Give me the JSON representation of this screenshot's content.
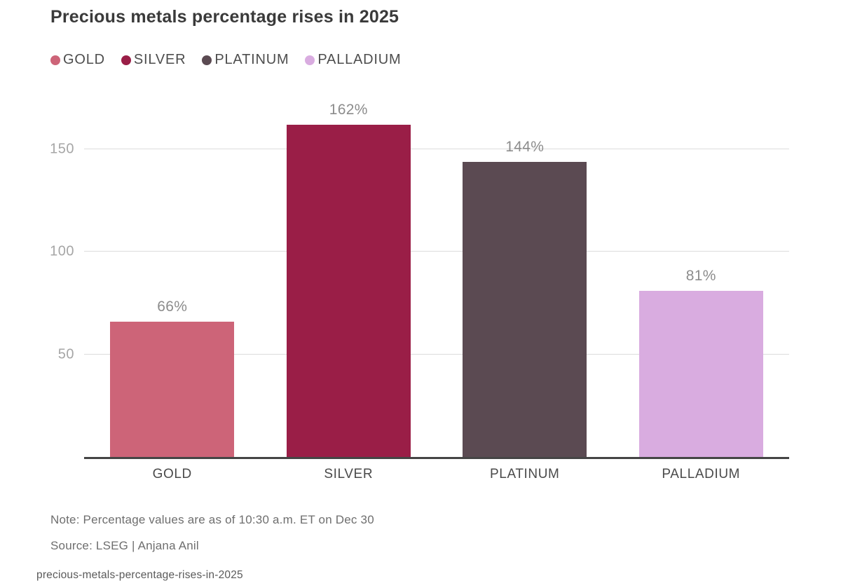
{
  "title": "Precious metals percentage rises in 2025",
  "legend": {
    "items": [
      {
        "label": "GOLD",
        "color": "#cd6478"
      },
      {
        "label": "SILVER",
        "color": "#9a1e47"
      },
      {
        "label": "PLATINUM",
        "color": "#5b4a52"
      },
      {
        "label": "PALLADIUM",
        "color": "#d9ace0"
      }
    ]
  },
  "chart_data": {
    "type": "bar",
    "title": "Precious metals percentage rises in 2025",
    "categories": [
      "GOLD",
      "SILVER",
      "PLATINUM",
      "PALLADIUM"
    ],
    "values": [
      66,
      162,
      144,
      81
    ],
    "value_labels": [
      "66%",
      "162%",
      "144%",
      "81%"
    ],
    "bar_colors": [
      "#cd6478",
      "#9a1e47",
      "#5b4a52",
      "#d9ace0"
    ],
    "yticks": [
      50,
      100,
      150
    ],
    "ylim": [
      0,
      175
    ],
    "xlabel": "",
    "ylabel": "",
    "grid": "horizontal-only",
    "legend_position": "top-left",
    "value_unit": "%"
  },
  "notes": {
    "note": "Note: Percentage values are as of 10:30 a.m. ET on Dec 30",
    "source": "Source: LSEG | Anjana Anil"
  },
  "footer": "precious-metals-percentage-rises-in-2025"
}
